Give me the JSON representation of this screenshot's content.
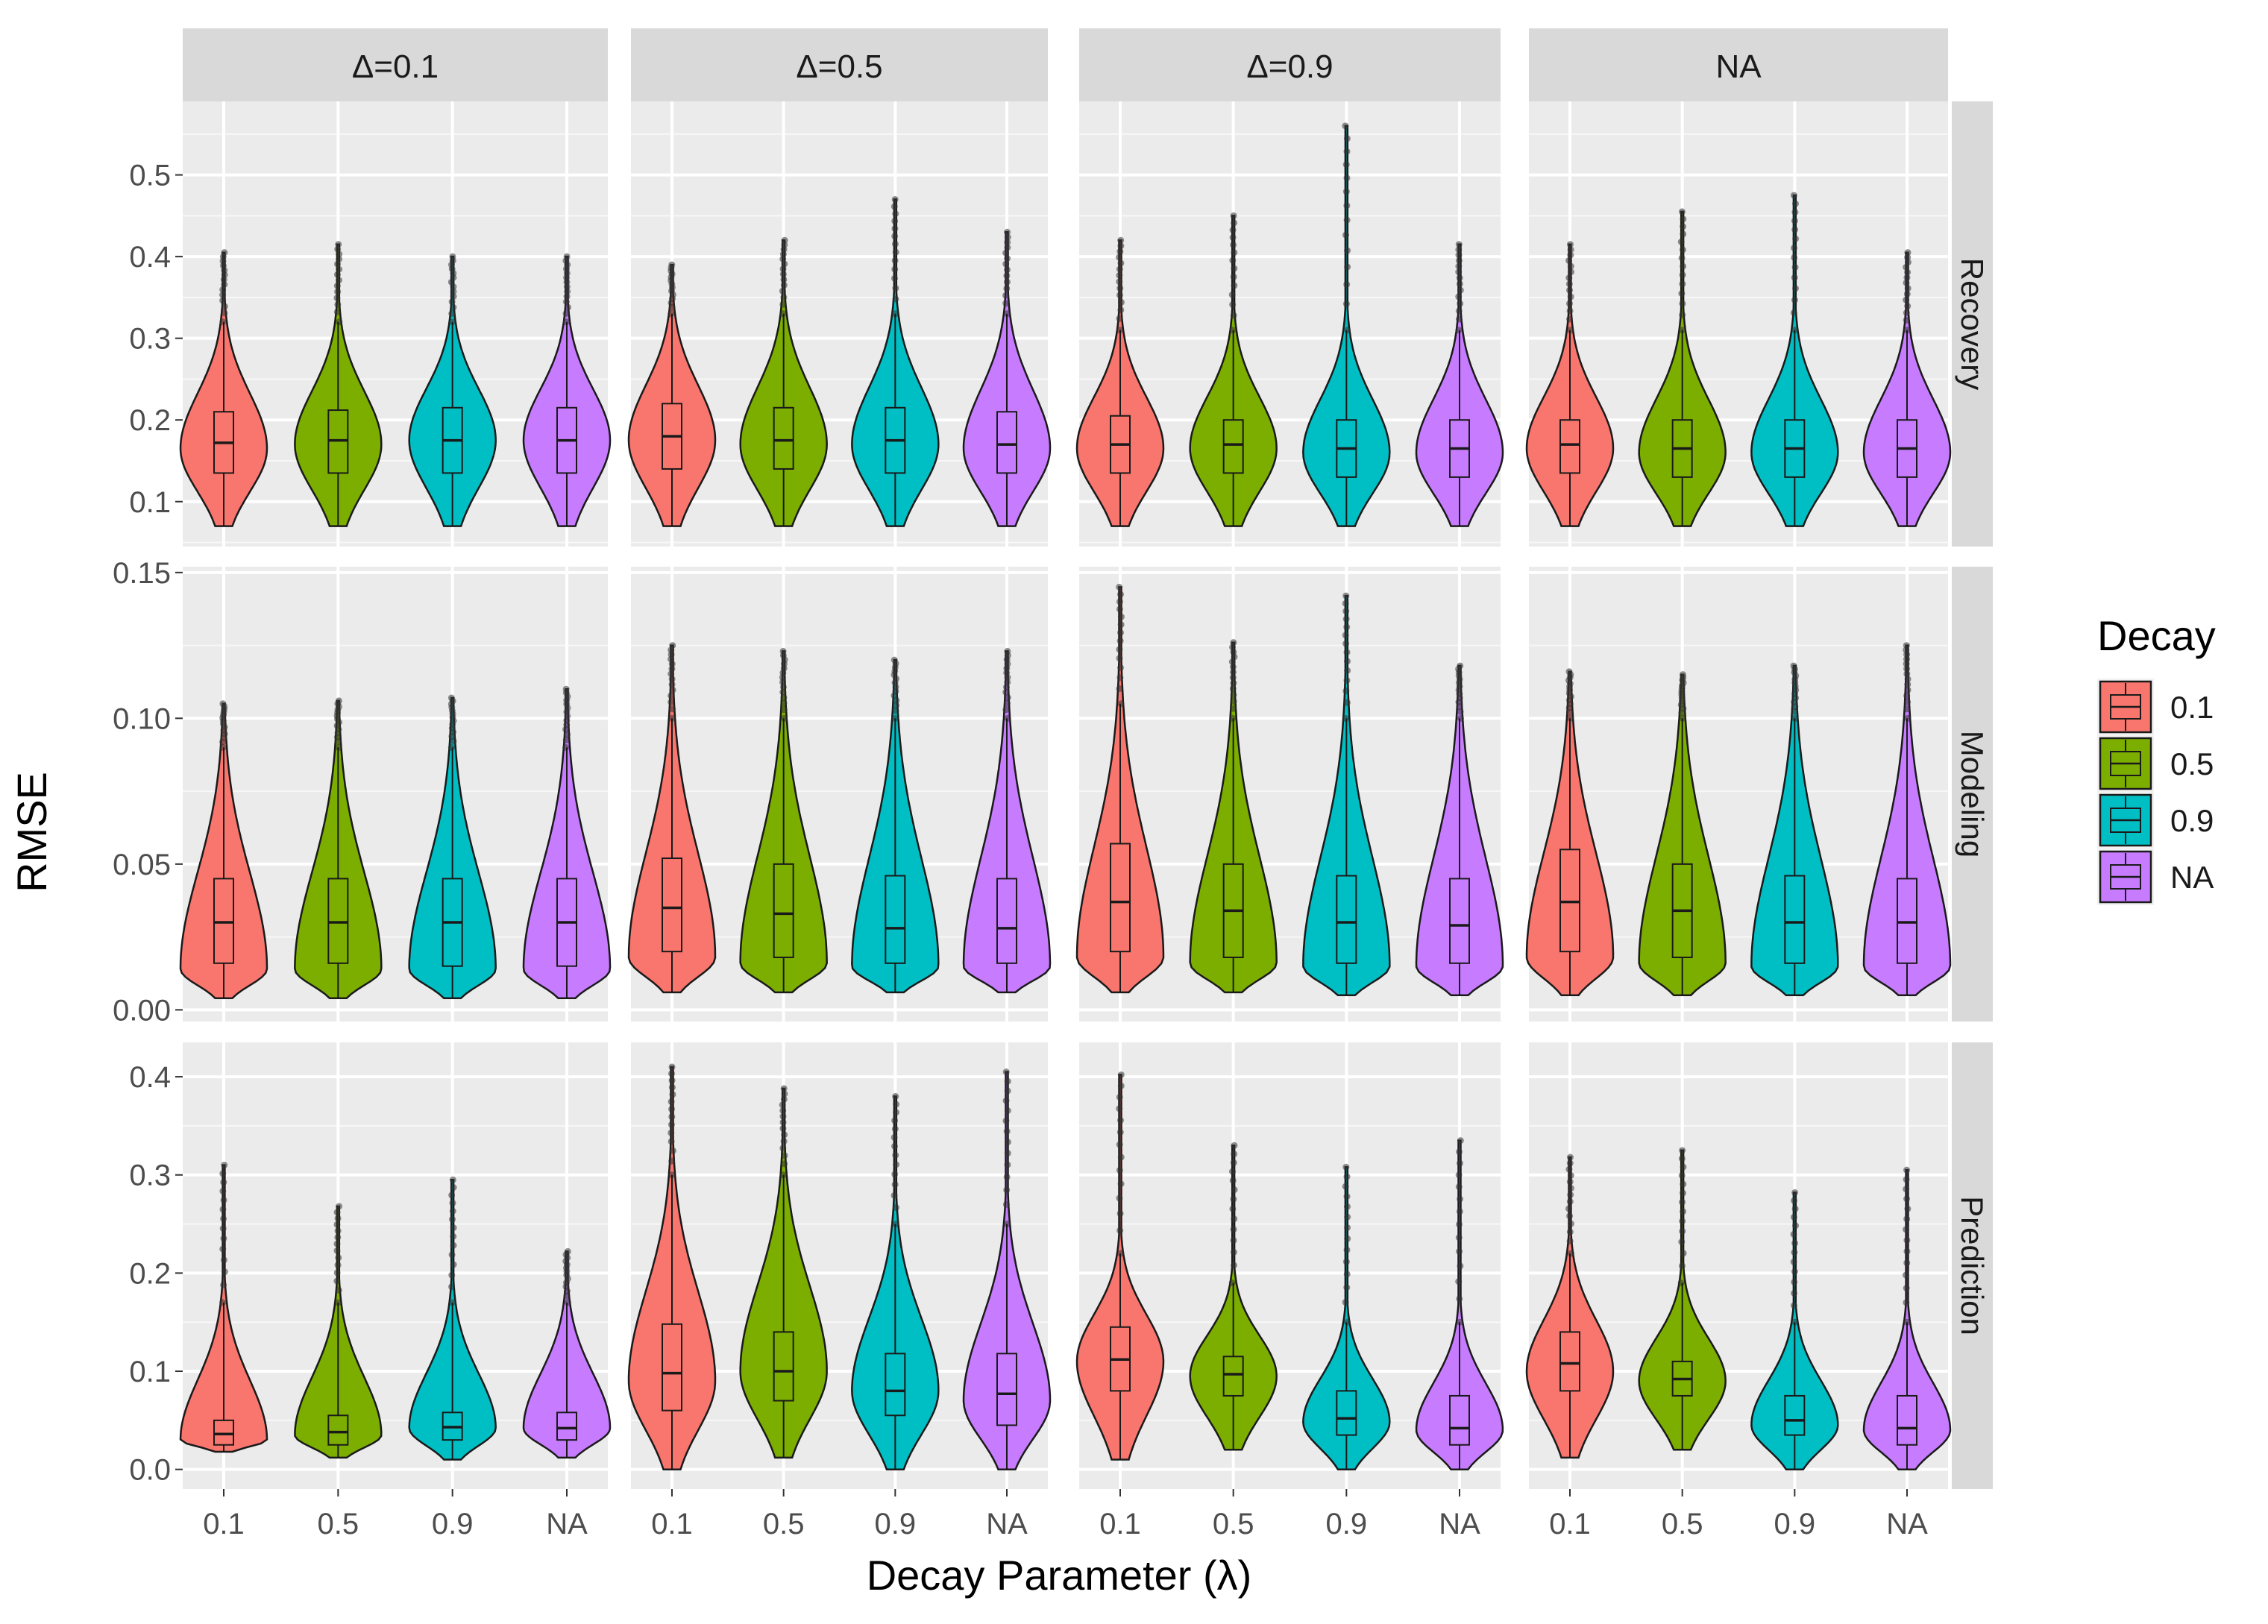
{
  "chart_data": {
    "type": "violin",
    "xlabel": "Decay Parameter (λ)",
    "ylabel": "RMSE",
    "categories": [
      "0.1",
      "0.5",
      "0.9",
      "NA"
    ],
    "columns": [
      "Δ=0.1",
      "Δ=0.5",
      "Δ=0.9",
      "NA"
    ],
    "rows": [
      {
        "label": "Recovery",
        "ylim": [
          0.045,
          0.59
        ],
        "ticks": [
          0.1,
          0.2,
          0.3,
          0.4,
          0.5
        ],
        "tick_labels": [
          "0.1",
          "0.2",
          "0.3",
          "0.4",
          "0.5"
        ]
      },
      {
        "label": "Modeling",
        "ylim": [
          -0.004,
          0.152
        ],
        "ticks": [
          0.0,
          0.05,
          0.1,
          0.15
        ],
        "tick_labels": [
          "0.00",
          "0.05",
          "0.10",
          "0.15"
        ]
      },
      {
        "label": "Prediction",
        "ylim": [
          -0.02,
          0.435
        ],
        "ticks": [
          0.0,
          0.1,
          0.2,
          0.3,
          0.4
        ],
        "tick_labels": [
          "0.0",
          "0.1",
          "0.2",
          "0.3",
          "0.4"
        ]
      }
    ],
    "legend": {
      "title": "Decay",
      "position": "right",
      "entries": [
        "0.1",
        "0.5",
        "0.9",
        "NA"
      ],
      "colors": [
        "#F8766D",
        "#7CAE00",
        "#00BFC4",
        "#C77CFF"
      ]
    },
    "grid": true,
    "panels": [
      [
        [
          {
            "min": 0.07,
            "q1": 0.135,
            "median": 0.172,
            "q3": 0.21,
            "upper": 0.32,
            "max": 0.405,
            "mode": 0.165
          },
          {
            "min": 0.07,
            "q1": 0.135,
            "median": 0.175,
            "q3": 0.212,
            "upper": 0.32,
            "max": 0.415,
            "mode": 0.17
          },
          {
            "min": 0.07,
            "q1": 0.135,
            "median": 0.175,
            "q3": 0.215,
            "upper": 0.32,
            "max": 0.4,
            "mode": 0.175
          },
          {
            "min": 0.07,
            "q1": 0.135,
            "median": 0.175,
            "q3": 0.215,
            "upper": 0.32,
            "max": 0.4,
            "mode": 0.175
          }
        ],
        [
          {
            "min": 0.07,
            "q1": 0.14,
            "median": 0.18,
            "q3": 0.22,
            "upper": 0.33,
            "max": 0.39,
            "mode": 0.175
          },
          {
            "min": 0.07,
            "q1": 0.14,
            "median": 0.175,
            "q3": 0.215,
            "upper": 0.33,
            "max": 0.42,
            "mode": 0.17
          },
          {
            "min": 0.07,
            "q1": 0.135,
            "median": 0.175,
            "q3": 0.215,
            "upper": 0.33,
            "max": 0.47,
            "mode": 0.17
          },
          {
            "min": 0.07,
            "q1": 0.135,
            "median": 0.17,
            "q3": 0.21,
            "upper": 0.33,
            "max": 0.43,
            "mode": 0.165
          }
        ],
        [
          {
            "min": 0.07,
            "q1": 0.135,
            "median": 0.17,
            "q3": 0.205,
            "upper": 0.31,
            "max": 0.42,
            "mode": 0.165
          },
          {
            "min": 0.07,
            "q1": 0.135,
            "median": 0.17,
            "q3": 0.2,
            "upper": 0.31,
            "max": 0.45,
            "mode": 0.165
          },
          {
            "min": 0.07,
            "q1": 0.13,
            "median": 0.165,
            "q3": 0.2,
            "upper": 0.31,
            "max": 0.56,
            "mode": 0.16
          },
          {
            "min": 0.07,
            "q1": 0.13,
            "median": 0.165,
            "q3": 0.2,
            "upper": 0.31,
            "max": 0.415,
            "mode": 0.16
          }
        ],
        [
          {
            "min": 0.07,
            "q1": 0.135,
            "median": 0.17,
            "q3": 0.2,
            "upper": 0.31,
            "max": 0.415,
            "mode": 0.165
          },
          {
            "min": 0.07,
            "q1": 0.13,
            "median": 0.165,
            "q3": 0.2,
            "upper": 0.31,
            "max": 0.455,
            "mode": 0.16
          },
          {
            "min": 0.07,
            "q1": 0.13,
            "median": 0.165,
            "q3": 0.2,
            "upper": 0.31,
            "max": 0.475,
            "mode": 0.16
          },
          {
            "min": 0.07,
            "q1": 0.13,
            "median": 0.165,
            "q3": 0.2,
            "upper": 0.31,
            "max": 0.405,
            "mode": 0.16
          }
        ]
      ],
      [
        [
          {
            "min": 0.004,
            "q1": 0.016,
            "median": 0.03,
            "q3": 0.045,
            "upper": 0.09,
            "max": 0.105,
            "mode": 0.014
          },
          {
            "min": 0.004,
            "q1": 0.016,
            "median": 0.03,
            "q3": 0.045,
            "upper": 0.09,
            "max": 0.106,
            "mode": 0.014
          },
          {
            "min": 0.004,
            "q1": 0.015,
            "median": 0.03,
            "q3": 0.045,
            "upper": 0.09,
            "max": 0.107,
            "mode": 0.014
          },
          {
            "min": 0.004,
            "q1": 0.015,
            "median": 0.03,
            "q3": 0.045,
            "upper": 0.09,
            "max": 0.11,
            "mode": 0.014
          }
        ],
        [
          {
            "min": 0.006,
            "q1": 0.02,
            "median": 0.035,
            "q3": 0.052,
            "upper": 0.1,
            "max": 0.125,
            "mode": 0.018
          },
          {
            "min": 0.006,
            "q1": 0.018,
            "median": 0.033,
            "q3": 0.05,
            "upper": 0.1,
            "max": 0.123,
            "mode": 0.016
          },
          {
            "min": 0.006,
            "q1": 0.016,
            "median": 0.028,
            "q3": 0.046,
            "upper": 0.1,
            "max": 0.12,
            "mode": 0.015
          },
          {
            "min": 0.006,
            "q1": 0.016,
            "median": 0.028,
            "q3": 0.045,
            "upper": 0.1,
            "max": 0.123,
            "mode": 0.015
          }
        ],
        [
          {
            "min": 0.006,
            "q1": 0.02,
            "median": 0.037,
            "q3": 0.057,
            "upper": 0.105,
            "max": 0.145,
            "mode": 0.018
          },
          {
            "min": 0.006,
            "q1": 0.018,
            "median": 0.034,
            "q3": 0.05,
            "upper": 0.1,
            "max": 0.126,
            "mode": 0.016
          },
          {
            "min": 0.005,
            "q1": 0.016,
            "median": 0.03,
            "q3": 0.046,
            "upper": 0.1,
            "max": 0.142,
            "mode": 0.015
          },
          {
            "min": 0.005,
            "q1": 0.016,
            "median": 0.029,
            "q3": 0.045,
            "upper": 0.1,
            "max": 0.118,
            "mode": 0.015
          }
        ],
        [
          {
            "min": 0.005,
            "q1": 0.02,
            "median": 0.037,
            "q3": 0.055,
            "upper": 0.1,
            "max": 0.116,
            "mode": 0.018
          },
          {
            "min": 0.005,
            "q1": 0.018,
            "median": 0.034,
            "q3": 0.05,
            "upper": 0.1,
            "max": 0.115,
            "mode": 0.016
          },
          {
            "min": 0.005,
            "q1": 0.016,
            "median": 0.03,
            "q3": 0.046,
            "upper": 0.1,
            "max": 0.118,
            "mode": 0.015
          },
          {
            "min": 0.005,
            "q1": 0.016,
            "median": 0.03,
            "q3": 0.045,
            "upper": 0.1,
            "max": 0.125,
            "mode": 0.015
          }
        ]
      ],
      [
        [
          {
            "min": 0.018,
            "q1": 0.025,
            "median": 0.036,
            "q3": 0.05,
            "upper": 0.17,
            "max": 0.31,
            "mode": 0.03
          },
          {
            "min": 0.012,
            "q1": 0.025,
            "median": 0.038,
            "q3": 0.055,
            "upper": 0.17,
            "max": 0.268,
            "mode": 0.035
          },
          {
            "min": 0.01,
            "q1": 0.03,
            "median": 0.043,
            "q3": 0.058,
            "upper": 0.17,
            "max": 0.295,
            "mode": 0.042
          },
          {
            "min": 0.012,
            "q1": 0.03,
            "median": 0.042,
            "q3": 0.058,
            "upper": 0.17,
            "max": 0.222,
            "mode": 0.042
          }
        ],
        [
          {
            "min": 0.0,
            "q1": 0.06,
            "median": 0.098,
            "q3": 0.148,
            "upper": 0.3,
            "max": 0.41,
            "mode": 0.09
          },
          {
            "min": 0.012,
            "q1": 0.07,
            "median": 0.1,
            "q3": 0.14,
            "upper": 0.3,
            "max": 0.388,
            "mode": 0.1
          },
          {
            "min": 0.0,
            "q1": 0.055,
            "median": 0.08,
            "q3": 0.118,
            "upper": 0.25,
            "max": 0.38,
            "mode": 0.08
          },
          {
            "min": 0.0,
            "q1": 0.045,
            "median": 0.077,
            "q3": 0.118,
            "upper": 0.25,
            "max": 0.405,
            "mode": 0.07
          }
        ],
        [
          {
            "min": 0.01,
            "q1": 0.08,
            "median": 0.112,
            "q3": 0.145,
            "upper": 0.22,
            "max": 0.402,
            "mode": 0.11
          },
          {
            "min": 0.02,
            "q1": 0.075,
            "median": 0.097,
            "q3": 0.115,
            "upper": 0.19,
            "max": 0.33,
            "mode": 0.095
          },
          {
            "min": 0.0,
            "q1": 0.035,
            "median": 0.052,
            "q3": 0.08,
            "upper": 0.15,
            "max": 0.308,
            "mode": 0.048
          },
          {
            "min": 0.0,
            "q1": 0.025,
            "median": 0.042,
            "q3": 0.075,
            "upper": 0.15,
            "max": 0.335,
            "mode": 0.04
          }
        ],
        [
          {
            "min": 0.012,
            "q1": 0.08,
            "median": 0.108,
            "q3": 0.14,
            "upper": 0.22,
            "max": 0.318,
            "mode": 0.1
          },
          {
            "min": 0.02,
            "q1": 0.075,
            "median": 0.092,
            "q3": 0.11,
            "upper": 0.19,
            "max": 0.325,
            "mode": 0.09
          },
          {
            "min": 0.0,
            "q1": 0.035,
            "median": 0.05,
            "q3": 0.075,
            "upper": 0.15,
            "max": 0.282,
            "mode": 0.045
          },
          {
            "min": 0.0,
            "q1": 0.025,
            "median": 0.042,
            "q3": 0.075,
            "upper": 0.15,
            "max": 0.305,
            "mode": 0.04
          }
        ]
      ]
    ]
  }
}
